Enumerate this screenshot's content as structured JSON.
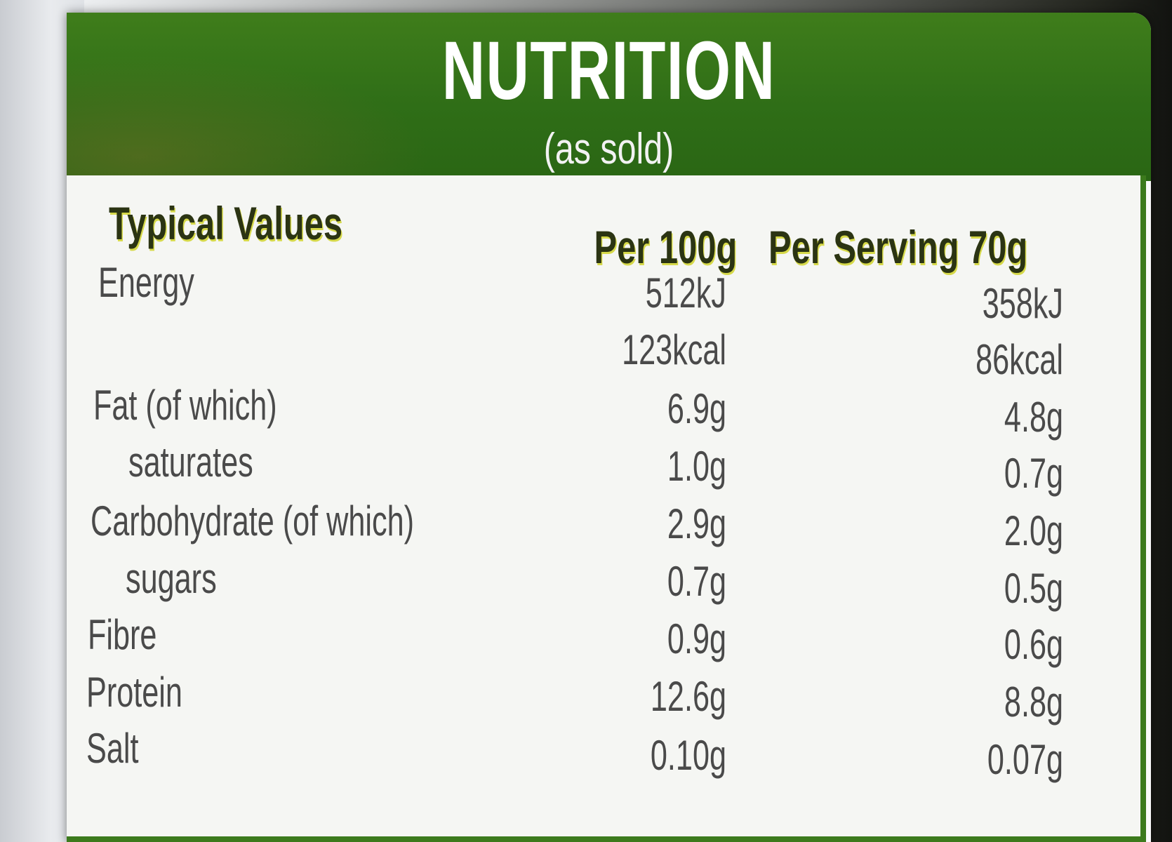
{
  "panel": {
    "title": "NUTRITION",
    "subtitle": "(as sold)"
  },
  "columns": {
    "label": "Typical Values",
    "per100": "Per 100g",
    "perServing": "Per Serving 70g"
  },
  "rows": [
    {
      "label": "Energy",
      "per100": "512kJ",
      "perServing": "358kJ"
    },
    {
      "label": "",
      "per100": "123kcal",
      "perServing": "86kcal"
    },
    {
      "label": "Fat (of which)",
      "per100": "6.9g",
      "perServing": "4.8g"
    },
    {
      "label": "saturates",
      "per100": "1.0g",
      "perServing": "0.7g"
    },
    {
      "label": "Carbohydrate (of which)",
      "per100": "2.9g",
      "perServing": "2.0g"
    },
    {
      "label": "sugars",
      "per100": "0.7g",
      "perServing": "0.5g"
    },
    {
      "label": "Fibre",
      "per100": "0.9g",
      "perServing": "0.6g"
    },
    {
      "label": "Protein",
      "per100": "12.6g",
      "perServing": "8.8g"
    },
    {
      "label": "Salt",
      "per100": "0.10g",
      "perServing": "0.07g"
    }
  ],
  "colors": {
    "header_green": "#2f6e17",
    "accent_yellow": "#d6d94a",
    "body_text": "#4a4a4a"
  }
}
